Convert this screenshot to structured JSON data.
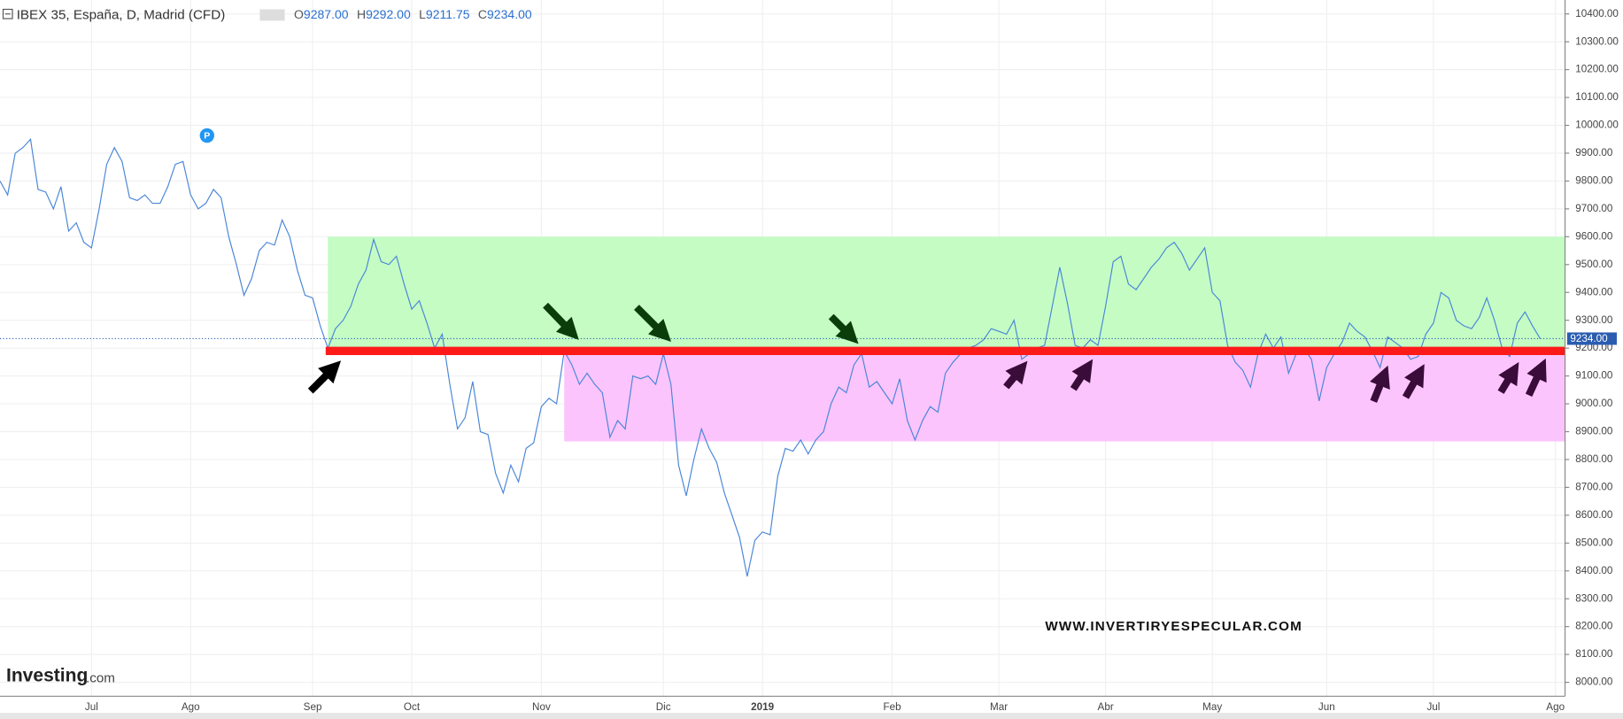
{
  "chart_data": {
    "type": "line",
    "title": "IBEX 35, España, D, Madrid (CFD)",
    "ohlc": [
      {
        "label": "O",
        "value": "9287.00"
      },
      {
        "label": "H",
        "value": "9292.00"
      },
      {
        "label": "L",
        "value": "9211.75"
      },
      {
        "label": "C",
        "value": "9234.00"
      }
    ],
    "marker_label": "P",
    "watermark": "WWW.INVERTIRYESPECULAR.COM",
    "logo": {
      "main": "Investing",
      "suffix": ".com"
    },
    "last_price": {
      "value": 9234,
      "label": "9234.00"
    },
    "color": "#4a86d8",
    "grid": true,
    "categories": [
      null,
      null,
      null,
      null,
      null,
      null,
      null,
      null,
      null,
      null,
      null,
      null,
      "Jul",
      null,
      null,
      null,
      null,
      null,
      null,
      null,
      null,
      null,
      null,
      null,
      null,
      "Ago",
      null,
      null,
      null,
      null,
      null,
      null,
      null,
      null,
      null,
      null,
      null,
      null,
      null,
      null,
      null,
      "Sep",
      null,
      null,
      null,
      null,
      null,
      null,
      null,
      null,
      null,
      null,
      null,
      null,
      "Oct",
      null,
      null,
      null,
      null,
      null,
      null,
      null,
      null,
      null,
      null,
      null,
      null,
      null,
      null,
      null,
      null,
      "Nov",
      null,
      null,
      null,
      null,
      null,
      null,
      null,
      null,
      null,
      null,
      null,
      null,
      null,
      null,
      null,
      "Dic",
      null,
      null,
      null,
      null,
      null,
      null,
      null,
      null,
      null,
      null,
      null,
      null,
      "2019",
      null,
      null,
      null,
      null,
      null,
      null,
      null,
      null,
      null,
      null,
      null,
      null,
      null,
      null,
      null,
      null,
      "Feb",
      null,
      null,
      null,
      null,
      null,
      null,
      null,
      null,
      null,
      null,
      null,
      null,
      null,
      "Mar",
      null,
      null,
      null,
      null,
      null,
      null,
      null,
      null,
      null,
      null,
      null,
      null,
      null,
      "Abr",
      null,
      null,
      null,
      null,
      null,
      null,
      null,
      null,
      null,
      null,
      null,
      null,
      null,
      "May",
      null,
      null,
      null,
      null,
      null,
      null,
      null,
      null,
      null,
      null,
      null,
      null,
      null,
      null,
      "Jun",
      null,
      null,
      null,
      null,
      null,
      null,
      null,
      null,
      null,
      null,
      null,
      null,
      null,
      "Jul",
      null,
      null,
      null,
      null,
      null,
      null,
      null,
      null,
      null,
      null,
      null,
      null,
      null,
      null,
      null,
      "Ago"
    ],
    "values": [
      9800,
      9750,
      9900,
      9920,
      9950,
      9770,
      9760,
      9700,
      9780,
      9620,
      9650,
      9580,
      9560,
      9700,
      9860,
      9920,
      9870,
      9740,
      9730,
      9750,
      9720,
      9720,
      9780,
      9860,
      9870,
      9750,
      9700,
      9720,
      9770,
      9740,
      9600,
      9500,
      9390,
      9450,
      9550,
      9580,
      9570,
      9660,
      9600,
      9480,
      9390,
      9380,
      9280,
      9200,
      9270,
      9300,
      9350,
      9430,
      9480,
      9590,
      9510,
      9500,
      9530,
      9430,
      9340,
      9370,
      9290,
      9200,
      9250,
      9070,
      8910,
      8950,
      9080,
      8900,
      8890,
      8750,
      8680,
      8780,
      8720,
      8840,
      8860,
      8990,
      9020,
      9000,
      9190,
      9140,
      9070,
      9110,
      9070,
      9040,
      8880,
      8940,
      8910,
      9100,
      9090,
      9100,
      9070,
      9180,
      9070,
      8780,
      8670,
      8800,
      8910,
      8840,
      8790,
      8680,
      8600,
      8520,
      8380,
      8510,
      8540,
      8530,
      8740,
      8840,
      8830,
      8870,
      8820,
      8870,
      8900,
      9000,
      9060,
      9040,
      9140,
      9180,
      9060,
      9080,
      9040,
      9000,
      9090,
      8940,
      8870,
      8940,
      8990,
      8970,
      9110,
      9150,
      9180,
      9200,
      9210,
      9230,
      9270,
      9260,
      9250,
      9300,
      9160,
      9180,
      9200,
      9210,
      9350,
      9490,
      9360,
      9210,
      9200,
      9230,
      9210,
      9350,
      9510,
      9530,
      9430,
      9410,
      9450,
      9490,
      9520,
      9560,
      9580,
      9540,
      9480,
      9520,
      9560,
      9400,
      9370,
      9210,
      9150,
      9120,
      9060,
      9180,
      9250,
      9200,
      9240,
      9110,
      9180,
      9200,
      9160,
      9010,
      9130,
      9180,
      9220,
      9290,
      9260,
      9240,
      9190,
      9130,
      9240,
      9220,
      9200,
      9160,
      9170,
      9250,
      9290,
      9400,
      9380,
      9300,
      9280,
      9270,
      9310,
      9380,
      9300,
      9200,
      9170,
      9290,
      9330,
      9280,
      9234,
      null,
      null
    ],
    "ylim": [
      7950,
      10450
    ],
    "yticks": [
      {
        "value": 8000,
        "label": "8000.00"
      },
      {
        "value": 8100,
        "label": "8100.00"
      },
      {
        "value": 8200,
        "label": "8200.00"
      },
      {
        "value": 8300,
        "label": "8300.00"
      },
      {
        "value": 8400,
        "label": "8400.00"
      },
      {
        "value": 8500,
        "label": "8500.00"
      },
      {
        "value": 8600,
        "label": "8600.00"
      },
      {
        "value": 8700,
        "label": "8700.00"
      },
      {
        "value": 8800,
        "label": "8800.00"
      },
      {
        "value": 8900,
        "label": "8900.00"
      },
      {
        "value": 9000,
        "label": "9000.00"
      },
      {
        "value": 9100,
        "label": "9100.00"
      },
      {
        "value": 9200,
        "label": "9200.00"
      },
      {
        "value": 9300,
        "label": "9300.00"
      },
      {
        "value": 9400,
        "label": "9400.00"
      },
      {
        "value": 9500,
        "label": "9500.00"
      },
      {
        "value": 9600,
        "label": "9600.00"
      },
      {
        "value": 9700,
        "label": "9700.00"
      },
      {
        "value": 9800,
        "label": "9800.00"
      },
      {
        "value": 9900,
        "label": "9900.00"
      },
      {
        "value": 10000,
        "label": "10000.00"
      },
      {
        "value": 10100,
        "label": "10100.00"
      },
      {
        "value": 10200,
        "label": "10200.00"
      },
      {
        "value": 10300,
        "label": "10300.00"
      },
      {
        "value": 10400,
        "label": "10400.00"
      }
    ],
    "zones": [
      {
        "color": "#c4fcc4",
        "range": [
          9200,
          9600
        ]
      },
      {
        "color": "#fcc4fc",
        "range": [
          8865,
          9190
        ]
      }
    ],
    "level": {
      "color": "#ff1a1a",
      "value": 9190
    }
  }
}
